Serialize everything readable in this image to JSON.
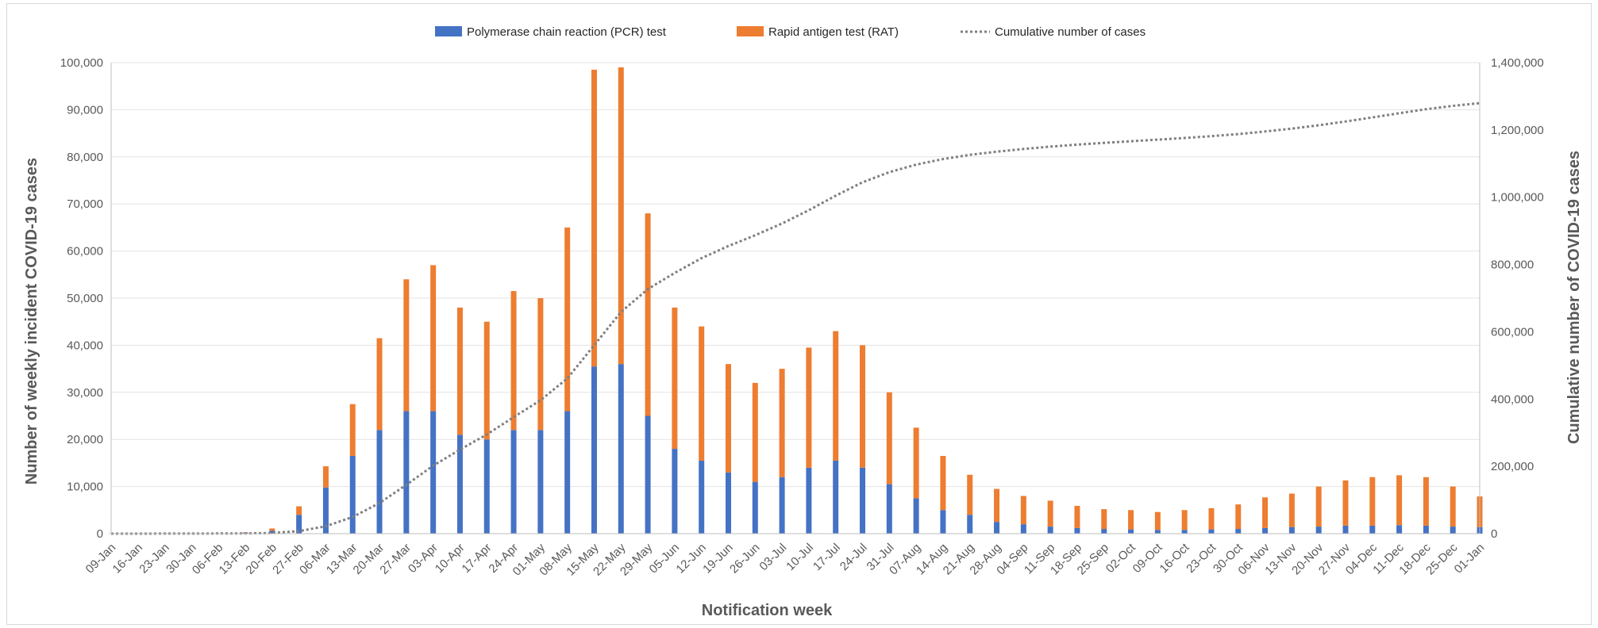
{
  "colors": {
    "pcr": "#4472c4",
    "rat": "#ed7d31",
    "cumulative": "#7f7f7f",
    "grid": "#e3e3e3",
    "axis": "#bfbfbf"
  },
  "chart_data": {
    "type": "bar",
    "stacked": true,
    "xlabel": "Notification week",
    "ylabel": "Number of weekly incident COVID-19 cases",
    "y2label": "Cumulative number of COVID-19 cases",
    "ylim": [
      0,
      100000
    ],
    "y2lim": [
      0,
      1400000
    ],
    "yticks": [
      "0",
      "10,000",
      "20,000",
      "30,000",
      "40,000",
      "50,000",
      "60,000",
      "70,000",
      "80,000",
      "90,000",
      "100,000"
    ],
    "y2ticks": [
      "0",
      "200,000",
      "400,000",
      "600,000",
      "800,000",
      "1,000,000",
      "1,200,000",
      "1,400,000"
    ],
    "grid": true,
    "legend_position": "top-center",
    "categories": [
      "09-Jan",
      "16-Jan",
      "23-Jan",
      "30-Jan",
      "06-Feb",
      "13-Feb",
      "20-Feb",
      "27-Feb",
      "06-Mar",
      "13-Mar",
      "20-Mar",
      "27-Mar",
      "03-Apr",
      "10-Apr",
      "17-Apr",
      "24-Apr",
      "01-May",
      "08-May",
      "15-May",
      "22-May",
      "29-May",
      "05-Jun",
      "12-Jun",
      "19-Jun",
      "26-Jun",
      "03-Jul",
      "10-Jul",
      "17-Jul",
      "24-Jul",
      "31-Jul",
      "07-Aug",
      "14-Aug",
      "21-Aug",
      "28-Aug",
      "04-Sep",
      "11-Sep",
      "18-Sep",
      "25-Sep",
      "02-Oct",
      "09-Oct",
      "16-Oct",
      "23-Oct",
      "30-Oct",
      "06-Nov",
      "13-Nov",
      "20-Nov",
      "27-Nov",
      "04-Dec",
      "11-Dec",
      "18-Dec",
      "25-Dec",
      "01-Jan"
    ],
    "series": [
      {
        "name": "Polymerase chain reaction (PCR) test",
        "kind": "bar",
        "values": [
          50,
          50,
          100,
          100,
          100,
          200,
          600,
          4000,
          9800,
          16500,
          22000,
          26000,
          26000,
          21000,
          20000,
          22000,
          22000,
          26000,
          35500,
          36000,
          25000,
          18000,
          15500,
          13000,
          11000,
          12000,
          14000,
          15500,
          14000,
          10500,
          7500,
          5000,
          4000,
          2500,
          2000,
          1500,
          1200,
          1000,
          900,
          800,
          800,
          900,
          1000,
          1200,
          1400,
          1500,
          1700,
          1700,
          1800,
          1700,
          1500,
          1400
        ]
      },
      {
        "name": "Rapid antigen test (RAT)",
        "kind": "bar",
        "values": [
          0,
          0,
          0,
          0,
          0,
          100,
          500,
          1800,
          4500,
          11000,
          19500,
          28000,
          31000,
          27000,
          25000,
          29500,
          28000,
          39000,
          63000,
          63000,
          43000,
          30000,
          28500,
          23000,
          21000,
          23000,
          25500,
          27500,
          26000,
          19500,
          15000,
          11500,
          8500,
          7000,
          6000,
          5500,
          4700,
          4200,
          4100,
          3800,
          4200,
          4500,
          5200,
          6500,
          7100,
          8500,
          9600,
          10300,
          10600,
          10300,
          8500,
          6500
        ]
      },
      {
        "name": "Cumulative number of cases",
        "kind": "line",
        "style": "dotted",
        "values": [
          50,
          100,
          200,
          300,
          400,
          700,
          1800,
          7600,
          21900,
          49400,
          90900,
          144900,
          201900,
          249900,
          294900,
          346400,
          396400,
          461400,
          559900,
          658900,
          726900,
          774900,
          818900,
          854900,
          886900,
          921900,
          961400,
          1004400,
          1044400,
          1074400,
          1096900,
          1113400,
          1125900,
          1135400,
          1143400,
          1150400,
          1156300,
          1161500,
          1166500,
          1171100,
          1176100,
          1181500,
          1187700,
          1195400,
          1203900,
          1213900,
          1225200,
          1237200,
          1249600,
          1261600,
          1271600,
          1279500
        ]
      }
    ]
  }
}
